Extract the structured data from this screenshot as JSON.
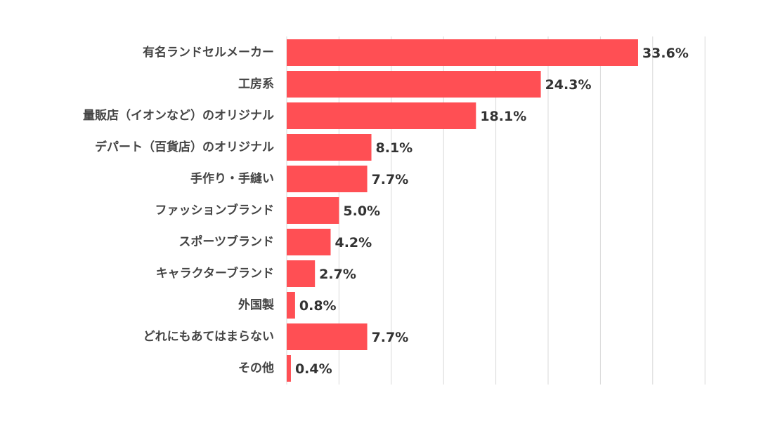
{
  "chart_data": {
    "type": "bar",
    "orientation": "horizontal",
    "categories": [
      "有名ランドセルメーカー",
      "工房系",
      "量販店（イオンなど）のオリジナル",
      "デパート（百貨店）のオリジナル",
      "手作り・手縫い",
      "ファッションブランド",
      "スポーツブランド",
      "キャラクターブランド",
      "外国製",
      "どれにもあてはまらない",
      "その他"
    ],
    "values": [
      33.6,
      24.3,
      18.1,
      8.1,
      7.7,
      5.0,
      4.2,
      2.7,
      0.8,
      7.7,
      0.4
    ],
    "value_labels": [
      "33.6%",
      "24.3%",
      "18.1%",
      "8.1%",
      "7.7%",
      "5.0%",
      "4.2%",
      "2.7%",
      "0.8%",
      "7.7%",
      "0.4%"
    ],
    "xlim": [
      0,
      40
    ],
    "grid_step": 5,
    "grid": true,
    "legend": "none",
    "bar_color": "#ff4f54",
    "title": "",
    "xlabel": "",
    "ylabel": ""
  }
}
